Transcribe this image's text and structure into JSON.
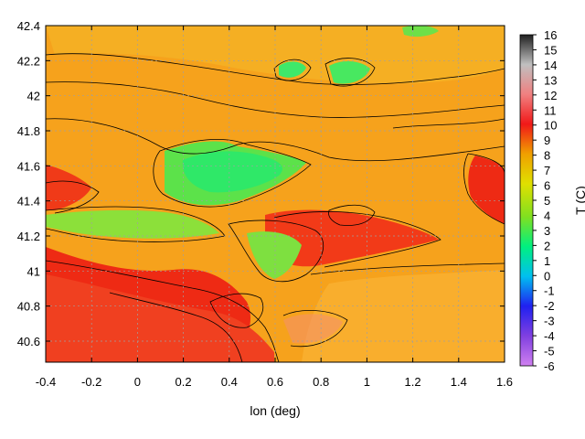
{
  "chart_data": {
    "type": "heatmap",
    "title": "",
    "xlabel": "lon (deg)",
    "ylabel": "",
    "colorbar_label": "T (C)",
    "xlim": [
      -0.4,
      1.6
    ],
    "ylim": [
      40.48,
      42.4
    ],
    "x_ticks": [
      "-0.4",
      "-0.2",
      "0",
      "0.2",
      "0.4",
      "0.6",
      "0.8",
      "1",
      "1.2",
      "1.4",
      "1.6"
    ],
    "x_tick_values": [
      -0.4,
      -0.2,
      0,
      0.2,
      0.4,
      0.6,
      0.8,
      1.0,
      1.2,
      1.4,
      1.6
    ],
    "y_ticks": [
      "40.6",
      "40.8",
      "41",
      "41.2",
      "41.4",
      "41.6",
      "41.8",
      "42",
      "42.2",
      "42.4"
    ],
    "y_tick_values": [
      40.6,
      40.8,
      41.0,
      41.2,
      41.4,
      41.6,
      41.8,
      42.0,
      42.2,
      42.4
    ],
    "colorbar_ticks": [
      "16",
      "15",
      "14",
      "13",
      "12",
      "11",
      "10",
      "9",
      "8",
      "7",
      "6",
      "5",
      "4",
      "3",
      "2",
      "1",
      "0",
      "-1",
      "-2",
      "-3",
      "-4",
      "-5",
      "-6"
    ],
    "colorbar_range": [
      -6,
      16
    ],
    "grid": true,
    "contour_lines": true,
    "colors": {
      "v_-6": "#d080f0",
      "v_-4": "#8040e0",
      "v_-2": "#2020f0",
      "v_0": "#00c0f0",
      "v_2": "#00f080",
      "v_4": "#80e020",
      "v_6": "#e0e000",
      "v_8": "#f0a000",
      "v_10": "#f01818",
      "v_12": "#f08080",
      "v_14": "#c0c0c0",
      "v_16": "#202020"
    },
    "approx_field_features": [
      {
        "feature": "general warm background",
        "value_c": 8
      },
      {
        "feature": "cool central valley band (green)",
        "lon_range": [
          0.1,
          0.7
        ],
        "lat_range": [
          41.35,
          41.7
        ],
        "value_c": 3
      },
      {
        "feature": "cool western band (green)",
        "lon_range": [
          -0.4,
          0.2
        ],
        "lat_range": [
          41.15,
          41.3
        ],
        "value_c": 4
      },
      {
        "feature": "northern cool spots (green)",
        "lon_range": [
          0.6,
          1.0
        ],
        "lat_range": [
          42.05,
          42.2
        ],
        "value_c": 3
      },
      {
        "feature": "warm red band south-west",
        "lon_range": [
          -0.4,
          0.5
        ],
        "lat_range": [
          40.6,
          41.0
        ],
        "value_c": 10
      },
      {
        "feature": "warm red ridge central-east",
        "lon_range": [
          0.6,
          1.4
        ],
        "lat_range": [
          41.2,
          41.35
        ],
        "value_c": 10
      },
      {
        "feature": "warm red eastern edge",
        "lon_range": [
          1.4,
          1.6
        ],
        "lat_range": [
          41.3,
          41.6
        ],
        "value_c": 10
      }
    ]
  }
}
